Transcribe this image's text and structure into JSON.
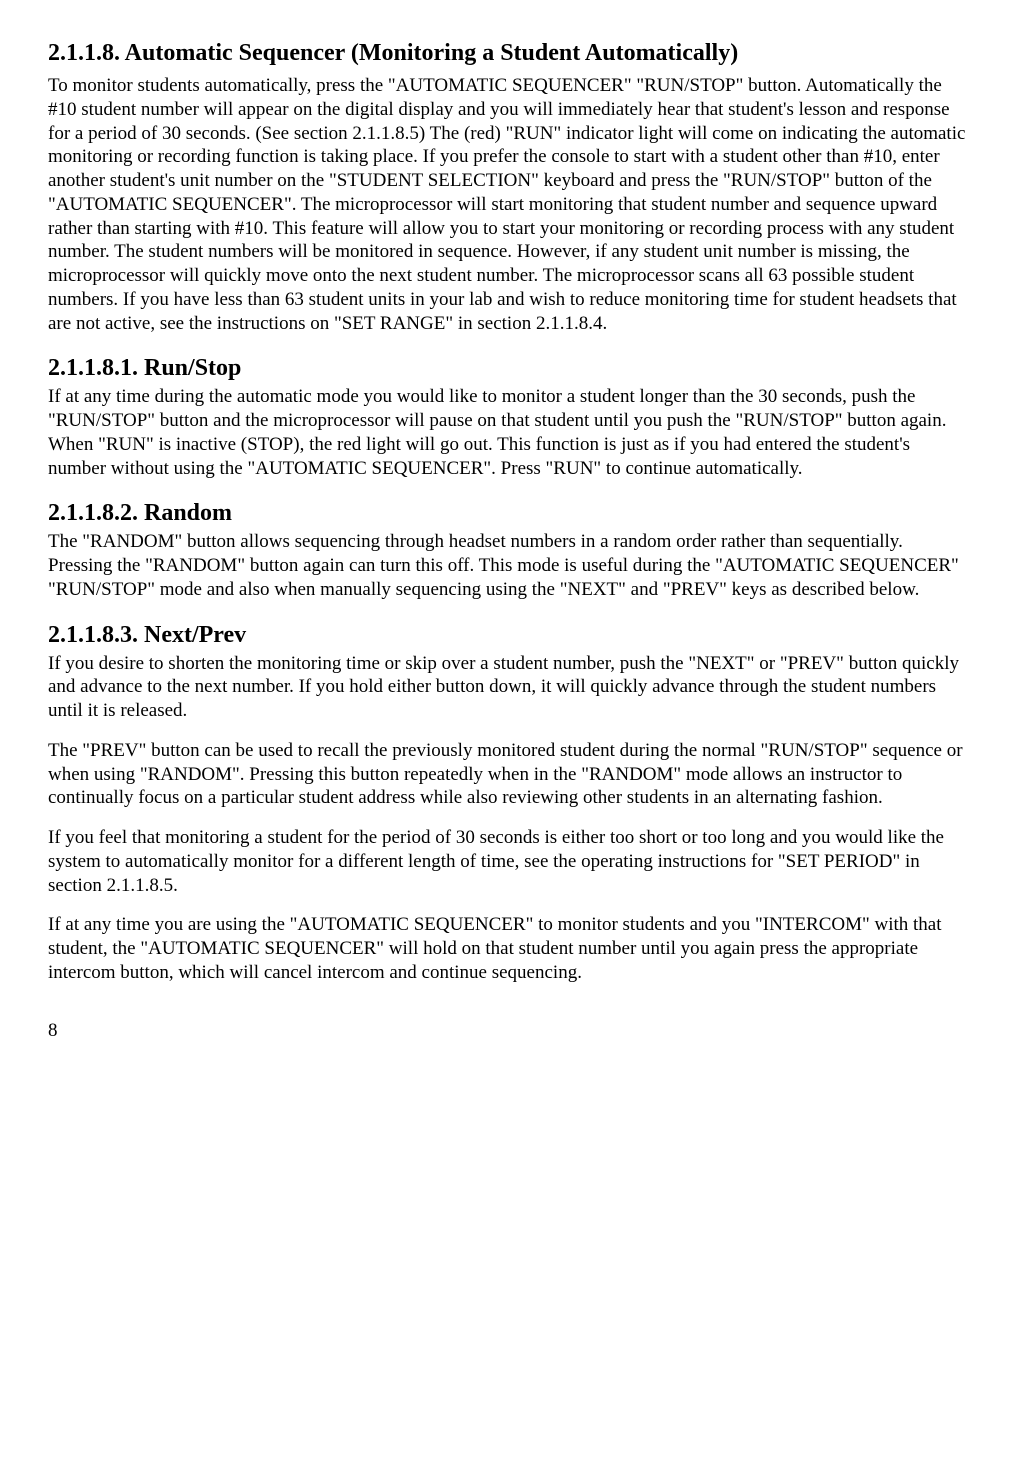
{
  "section_2118": {
    "heading": "2.1.1.8. Automatic Sequencer (Monitoring a Student Automatically)",
    "p1": "To monitor students automatically, press the \"AUTOMATIC SEQUENCER\" \"RUN/STOP\" button. Automatically the #10 student number will appear on the digital display and you will immediately hear that student's lesson and response for a period of 30 seconds. (See section 2.1.1.8.5) The (red) \"RUN\" indicator light will come on indicating the automatic monitoring or recording function is taking place. If you prefer the console to start with a student other than #10, enter another student's unit number on the \"STUDENT SELECTION\" keyboard and press the \"RUN/STOP\" button of the \"AUTOMATIC SEQUENCER\". The microprocessor will start monitoring that student number and sequence upward rather than starting with #10. This feature will allow you to start your monitoring or recording process with any student number. The student numbers will be monitored in sequence. However, if any student unit number is missing, the microprocessor will quickly move onto the next student number. The microprocessor scans all 63 possible student numbers. If you have less than 63 student units in your lab and wish to reduce monitoring time for student headsets that are not active, see the instructions on \"SET RANGE\" in section 2.1.1.8.4."
  },
  "section_21181": {
    "heading": "2.1.1.8.1.  Run/Stop",
    "p1": "If at any time during the automatic mode you would like to monitor a student longer than the 30 seconds, push the \"RUN/STOP\" button and the microprocessor will pause on that student until you push the \"RUN/STOP\" button again. When \"RUN\" is inactive (STOP), the red light will go out. This function is just as if you had entered the student's number without using the \"AUTOMATIC SEQUENCER\". Press \"RUN\" to continue automatically."
  },
  "section_21182": {
    "heading": "2.1.1.8.2.  Random",
    "p1": "The \"RANDOM\" button allows sequencing through headset numbers in a random order rather than sequentially.  Pressing the \"RANDOM\" button again can turn this off.  This mode is useful during the \"AUTOMATIC SEQUENCER\" \"RUN/STOP\" mode and also when manually sequencing using the \"NEXT\" and \"PREV\" keys as described below."
  },
  "section_21183": {
    "heading": "2.1.1.8.3.  Next/Prev",
    "p1": "If you desire to shorten the monitoring time or skip over a student number, push the \"NEXT\" or \"PREV\" button quickly and advance to the next number. If you hold either button down, it will quickly advance through the student numbers until it is released.",
    "p2": "The \"PREV\" button can be used to recall the previously monitored student during the normal \"RUN/STOP\" sequence or when using \"RANDOM\".  Pressing this button repeatedly when in the \"RANDOM\" mode allows an instructor to continually focus on a particular student address while also reviewing other students in an alternating fashion.",
    "p3": "If you feel that monitoring a student for the period of 30 seconds is either too short or too long and you would like the system to automatically monitor for a different length of time, see the operating instructions for \"SET PERIOD\" in section 2.1.1.8.5.",
    "p4": "If at any time you are using the \"AUTOMATIC SEQUENCER\" to monitor students and you \"INTERCOM\" with that student, the \"AUTOMATIC SEQUENCER\" will hold on that student number until you again press the appropriate intercom button, which will cancel intercom and continue sequencing."
  },
  "page_number": "8"
}
